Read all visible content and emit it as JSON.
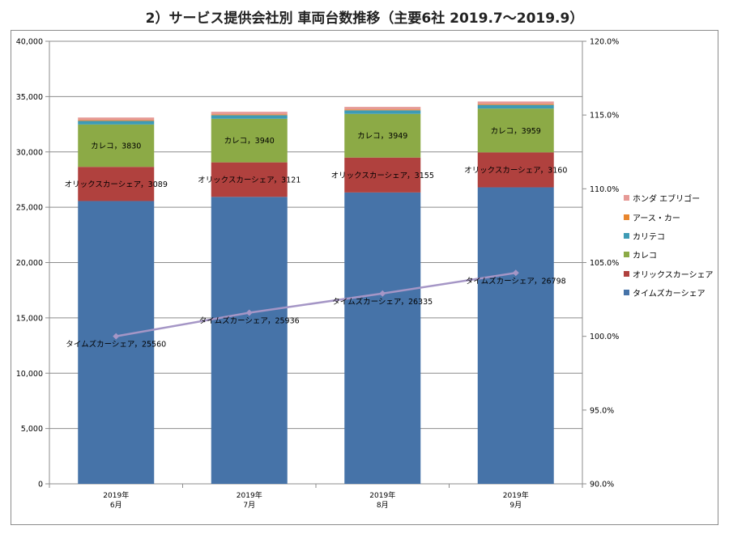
{
  "chart_data": {
    "type": "stacked-bar-with-line",
    "title": "2）サービス提供会社別 車両台数推移（主要6社 2019.7～2019.9）",
    "categories": [
      [
        "2019年",
        "6月"
      ],
      [
        "2019年",
        "7月"
      ],
      [
        "2019年",
        "8月"
      ],
      [
        "2019年",
        "9月"
      ]
    ],
    "y_left": {
      "min": 0,
      "max": 40000,
      "step": 5000,
      "tick_labels": [
        "0",
        "5,000",
        "10,000",
        "15,000",
        "20,000",
        "25,000",
        "30,000",
        "35,000",
        "40,000"
      ]
    },
    "y_right": {
      "min": 90,
      "max": 120,
      "step": 5,
      "tick_labels": [
        "90.0%",
        "95.0%",
        "100.0%",
        "105.0%",
        "110.0%",
        "115.0%",
        "120.0%"
      ]
    },
    "grid": true,
    "legend_position": "right",
    "series": [
      {
        "name": "タイムズカーシェア",
        "color": "#4673a8",
        "values": [
          25560,
          25936,
          26335,
          26798
        ],
        "labels": [
          "タイムズカーシェア，25560",
          "タイムズカーシェア，25936",
          "タイムズカーシェア，26335",
          "タイムズカーシェア，26798"
        ]
      },
      {
        "name": "オリックスカーシェア",
        "color": "#b0413e",
        "values": [
          3089,
          3121,
          3155,
          3160
        ],
        "labels": [
          "オリックスカーシェア，3089",
          "オリックスカーシェア，3121",
          "オリックスカーシェア，3155",
          "オリックスカーシェア，3160"
        ]
      },
      {
        "name": "カレコ",
        "color": "#8caa46",
        "values": [
          3830,
          3940,
          3949,
          3959
        ],
        "labels": [
          "カレコ，3830",
          "カレコ，3940",
          "カレコ，3949",
          "カレコ，3959"
        ]
      },
      {
        "name": "カリテコ",
        "color": "#3e9bb5",
        "values": [
          320,
          320,
          320,
          330
        ]
      },
      {
        "name": "アース・カー",
        "color": "#e8862e",
        "values": [
          80,
          80,
          80,
          80
        ]
      },
      {
        "name": "ホンダ エブリゴー",
        "color": "#e69a96",
        "values": [
          230,
          230,
          230,
          230
        ]
      }
    ],
    "line": {
      "axis": "right",
      "color": "#a596c6",
      "values": [
        100.0,
        101.6,
        102.9,
        104.3
      ]
    },
    "legend_order": [
      "ホンダ エブリゴー",
      "アース・カー",
      "カリテコ",
      "カレコ",
      "オリックスカーシェア",
      "タイムズカーシェア"
    ]
  }
}
